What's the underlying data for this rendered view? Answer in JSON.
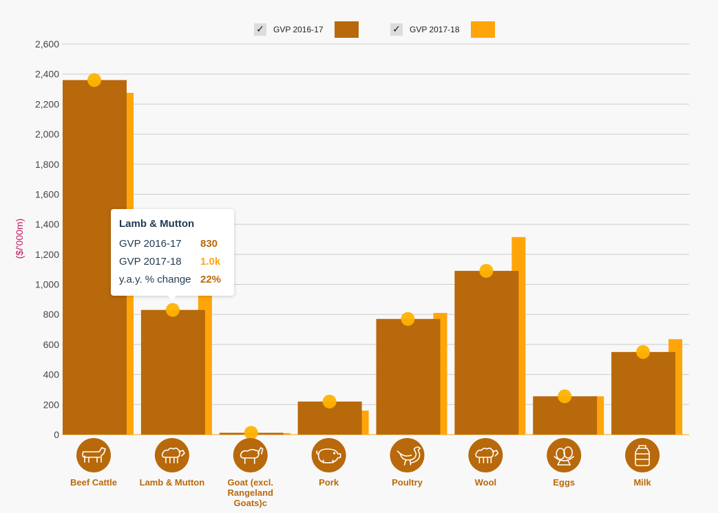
{
  "legend": {
    "items": [
      {
        "label": "GVP 2016-17",
        "color": "#b8690b",
        "check": "✓"
      },
      {
        "label": "GVP 2017-18",
        "color": "#ffa50a",
        "check": "✓"
      }
    ]
  },
  "icons": [
    "cow-icon",
    "sheep-icon",
    "goat-icon",
    "pig-icon",
    "chicken-icon",
    "sheep-icon",
    "eggs-icon",
    "milk-can-icon"
  ],
  "tooltip": {
    "title": "Lamb & Mutton",
    "rows": [
      {
        "label": "GVP 2016-17",
        "value": "830",
        "color": "#b8690b"
      },
      {
        "label": "GVP 2017-18",
        "value": "1.0k",
        "color": "#ffa50a"
      },
      {
        "label": "y.a.y. % change",
        "value": "22%",
        "color": "#b8690b"
      }
    ]
  },
  "chart_data": {
    "type": "bar",
    "title": "",
    "xlabel": "",
    "ylabel": "($/'000m)",
    "ylim": [
      0,
      2600
    ],
    "ytick_step": 200,
    "yticks": [
      "0",
      "200",
      "400",
      "600",
      "800",
      "1,000",
      "1,200",
      "1,400",
      "1,600",
      "1,800",
      "2,000",
      "2,200",
      "2,400",
      "2,600"
    ],
    "grid": true,
    "legend_position": "top-center",
    "categories": [
      "Beef Cattle",
      "Lamb & Mutton",
      "Goat (excl. Rangeland Goats)c",
      "Pork",
      "Poultry",
      "Wool",
      "Eggs",
      "Milk"
    ],
    "category_lines": [
      [
        "Beef Cattle"
      ],
      [
        "Lamb & Mutton"
      ],
      [
        "Goat (excl.",
        "Rangeland",
        "Goats)c"
      ],
      [
        "Pork"
      ],
      [
        "Poultry"
      ],
      [
        "Wool"
      ],
      [
        "Eggs"
      ],
      [
        "Milk"
      ]
    ],
    "series": [
      {
        "name": "GVP 2016-17",
        "color": "#b8690b",
        "values": [
          2360,
          830,
          12,
          220,
          770,
          1090,
          255,
          550
        ]
      },
      {
        "name": "GVP 2017-18",
        "color": "#ffa50a",
        "values": [
          2275,
          1010,
          10,
          160,
          810,
          1315,
          255,
          635
        ]
      }
    ],
    "marker_color": "#ffb300",
    "label_color": "#b8690b"
  }
}
